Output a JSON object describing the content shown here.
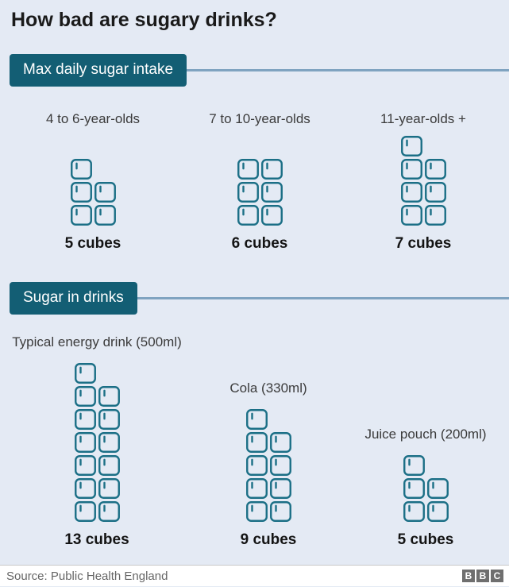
{
  "title": "How bad are sugary drinks?",
  "sections": [
    {
      "banner": "Max daily sugar intake",
      "items": [
        {
          "label": "4 to 6-year-olds",
          "cubes": 5,
          "count_label": "5 cubes"
        },
        {
          "label": "7 to 10-year-olds",
          "cubes": 6,
          "count_label": "6 cubes"
        },
        {
          "label": "11-year-olds +",
          "cubes": 7,
          "count_label": "7 cubes"
        }
      ]
    },
    {
      "banner": "Sugar in drinks",
      "items": [
        {
          "label": "Typical energy drink (500ml)",
          "cubes": 13,
          "count_label": "13 cubes"
        },
        {
          "label": "Cola (330ml)",
          "cubes": 9,
          "count_label": "9 cubes"
        },
        {
          "label": "Juice pouch (200ml)",
          "cubes": 5,
          "count_label": "5 cubes"
        }
      ]
    }
  ],
  "footer": {
    "source": "Source: Public Health England",
    "logo_letters": [
      "B",
      "B",
      "C"
    ]
  },
  "colors": {
    "background": "#e4eaf4",
    "banner": "#135e74",
    "banner_text": "#ffffff",
    "cube": "#1b6f86",
    "connector": "#7fa3c0",
    "title_text": "#1a1a1a",
    "label_text": "#3b3b3b",
    "count_text": "#141414",
    "footer_text": "#666666",
    "footer_bg": "#ffffff",
    "footer_border": "#c9c9c9",
    "bbc_block": "#6f6f6f"
  },
  "chart_data": [
    {
      "type": "bar",
      "title": "Max daily sugar intake",
      "categories": [
        "4 to 6-year-olds",
        "7 to 10-year-olds",
        "11-year-olds +"
      ],
      "values": [
        5,
        6,
        7
      ],
      "unit": "sugar cubes",
      "ylabel": "Sugar cubes",
      "ylim": [
        0,
        13
      ],
      "legend": false,
      "grid": false
    },
    {
      "type": "bar",
      "title": "Sugar in drinks",
      "categories": [
        "Typical energy drink (500ml)",
        "Cola (330ml)",
        "Juice pouch (200ml)"
      ],
      "values": [
        13,
        9,
        5
      ],
      "unit": "sugar cubes",
      "ylabel": "Sugar cubes",
      "ylim": [
        0,
        13
      ],
      "legend": false,
      "grid": false
    }
  ]
}
